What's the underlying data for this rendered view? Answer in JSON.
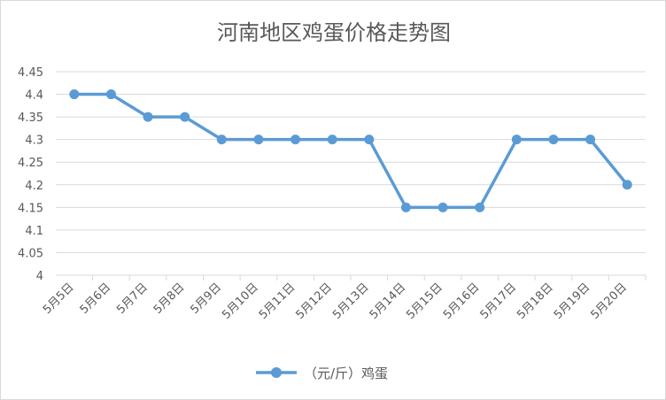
{
  "chart_data": {
    "type": "line",
    "title": "河南地区鸡蛋价格走势图",
    "xlabel": "",
    "ylabel": "",
    "categories": [
      "5月5日",
      "5月6日",
      "5月7日",
      "5月8日",
      "5月9日",
      "5月10日",
      "5月11日",
      "5月12日",
      "5月13日",
      "5月14日",
      "5月15日",
      "5月16日",
      "5月17日",
      "5月18日",
      "5月19日",
      "5月20日"
    ],
    "series": [
      {
        "name": "（元/斤）鸡蛋",
        "values": [
          4.4,
          4.4,
          4.35,
          4.35,
          4.3,
          4.3,
          4.3,
          4.3,
          4.3,
          4.15,
          4.15,
          4.15,
          4.3,
          4.3,
          4.3,
          4.2
        ]
      }
    ],
    "ylim": [
      4,
      4.45
    ],
    "yticks": [
      "4",
      "4.05",
      "4.1",
      "4.15",
      "4.2",
      "4.25",
      "4.3",
      "4.35",
      "4.4",
      "4.45"
    ],
    "grid": true,
    "legend_position": "bottom",
    "colors": {
      "series": "#5b9bd5",
      "grid": "#d9d9d9",
      "text": "#595959"
    }
  }
}
